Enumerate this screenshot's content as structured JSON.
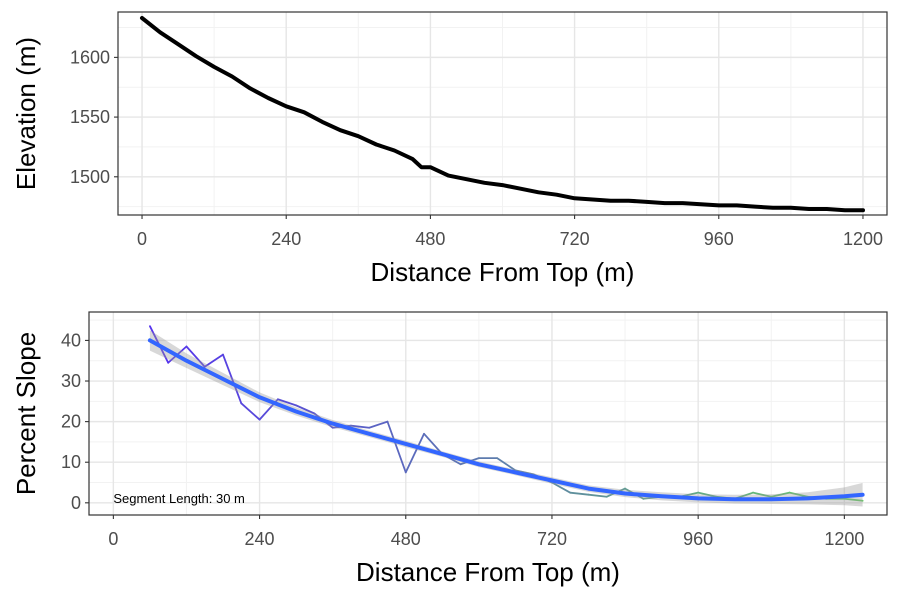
{
  "chart_data": [
    {
      "type": "line",
      "xlabel": "Distance From Top (m)",
      "ylabel": "Elevation (m)",
      "xlim": [
        -40,
        1240
      ],
      "ylim": [
        1468,
        1638
      ],
      "xticks": [
        0,
        240,
        480,
        720,
        960,
        1200
      ],
      "yticks": [
        1500,
        1550,
        1600
      ],
      "grid": true,
      "series": [
        {
          "color": "#000000",
          "x": [
            0,
            30,
            60,
            90,
            120,
            150,
            180,
            210,
            240,
            270,
            300,
            330,
            360,
            390,
            420,
            450,
            465,
            480,
            510,
            540,
            570,
            600,
            630,
            660,
            690,
            720,
            750,
            780,
            810,
            840,
            870,
            900,
            930,
            960,
            990,
            1020,
            1050,
            1080,
            1110,
            1140,
            1170,
            1200
          ],
          "y": [
            1633,
            1621,
            1611,
            1601,
            1592,
            1584,
            1574,
            1566,
            1559,
            1554,
            1546,
            1539,
            1534,
            1527,
            1522,
            1515,
            1508,
            1508,
            1501,
            1498,
            1495,
            1493,
            1490,
            1487,
            1485,
            1482,
            1481,
            1480,
            1480,
            1479,
            1478,
            1478,
            1477,
            1476,
            1476,
            1475,
            1474,
            1474,
            1473,
            1473,
            1472,
            1472
          ]
        }
      ]
    },
    {
      "type": "line",
      "xlabel": "Distance From Top (m)",
      "ylabel": "Percent Slope",
      "xlim": [
        -40,
        1270
      ],
      "ylim": [
        -3,
        47
      ],
      "xticks": [
        0,
        240,
        480,
        720,
        960,
        1200
      ],
      "yticks": [
        0,
        10,
        20,
        30,
        40
      ],
      "grid": true,
      "annotation": "Segment Length: 30 m",
      "series": [
        {
          "color_gradient": [
            "#5533ee",
            "#66cc66"
          ],
          "x": [
            60,
            90,
            120,
            150,
            180,
            210,
            240,
            270,
            300,
            330,
            360,
            390,
            420,
            450,
            480,
            510,
            540,
            570,
            600,
            630,
            660,
            690,
            720,
            750,
            780,
            810,
            840,
            870,
            900,
            930,
            960,
            990,
            1020,
            1050,
            1080,
            1110,
            1140,
            1170,
            1200,
            1230
          ],
          "y": [
            43.5,
            34.5,
            38.5,
            33.5,
            36.5,
            24.5,
            20.5,
            25.5,
            24,
            22,
            18.5,
            19,
            18.5,
            20,
            7.5,
            17,
            12,
            9.5,
            11,
            11,
            8,
            7,
            5,
            2.5,
            2,
            1.5,
            3.5,
            1,
            1.5,
            1.5,
            2.5,
            1.5,
            1,
            2.5,
            1.5,
            2.5,
            1.5,
            1,
            1,
            0.5
          ]
        },
        {
          "name": "",
          "color": "#3366ff",
          "fit": "smooth",
          "x": [
            60,
            120,
            180,
            240,
            300,
            360,
            420,
            480,
            540,
            600,
            660,
            720,
            780,
            840,
            900,
            960,
            1020,
            1080,
            1140,
            1200,
            1230
          ],
          "y": [
            40,
            35,
            30.5,
            26,
            22.5,
            19.5,
            17,
            14.5,
            12,
            9.5,
            7.5,
            5.5,
            3.5,
            2.3,
            1.6,
            1.1,
            0.9,
            0.9,
            1.1,
            1.6,
            2
          ],
          "ci_low": [
            37.5,
            33.2,
            29,
            24.8,
            21.5,
            18.6,
            16.2,
            13.7,
            11.3,
            8.8,
            6.8,
            4.7,
            2.7,
            1.4,
            0.6,
            0.1,
            -0.2,
            -0.3,
            -0.4,
            -0.6,
            -0.9
          ],
          "ci_high": [
            42.5,
            36.8,
            32,
            27.2,
            23.5,
            20.4,
            17.8,
            15.3,
            12.7,
            10.2,
            8.2,
            6.3,
            4.3,
            3.2,
            2.6,
            2.1,
            2,
            2.1,
            2.6,
            3.8,
            4.9
          ]
        }
      ]
    }
  ]
}
